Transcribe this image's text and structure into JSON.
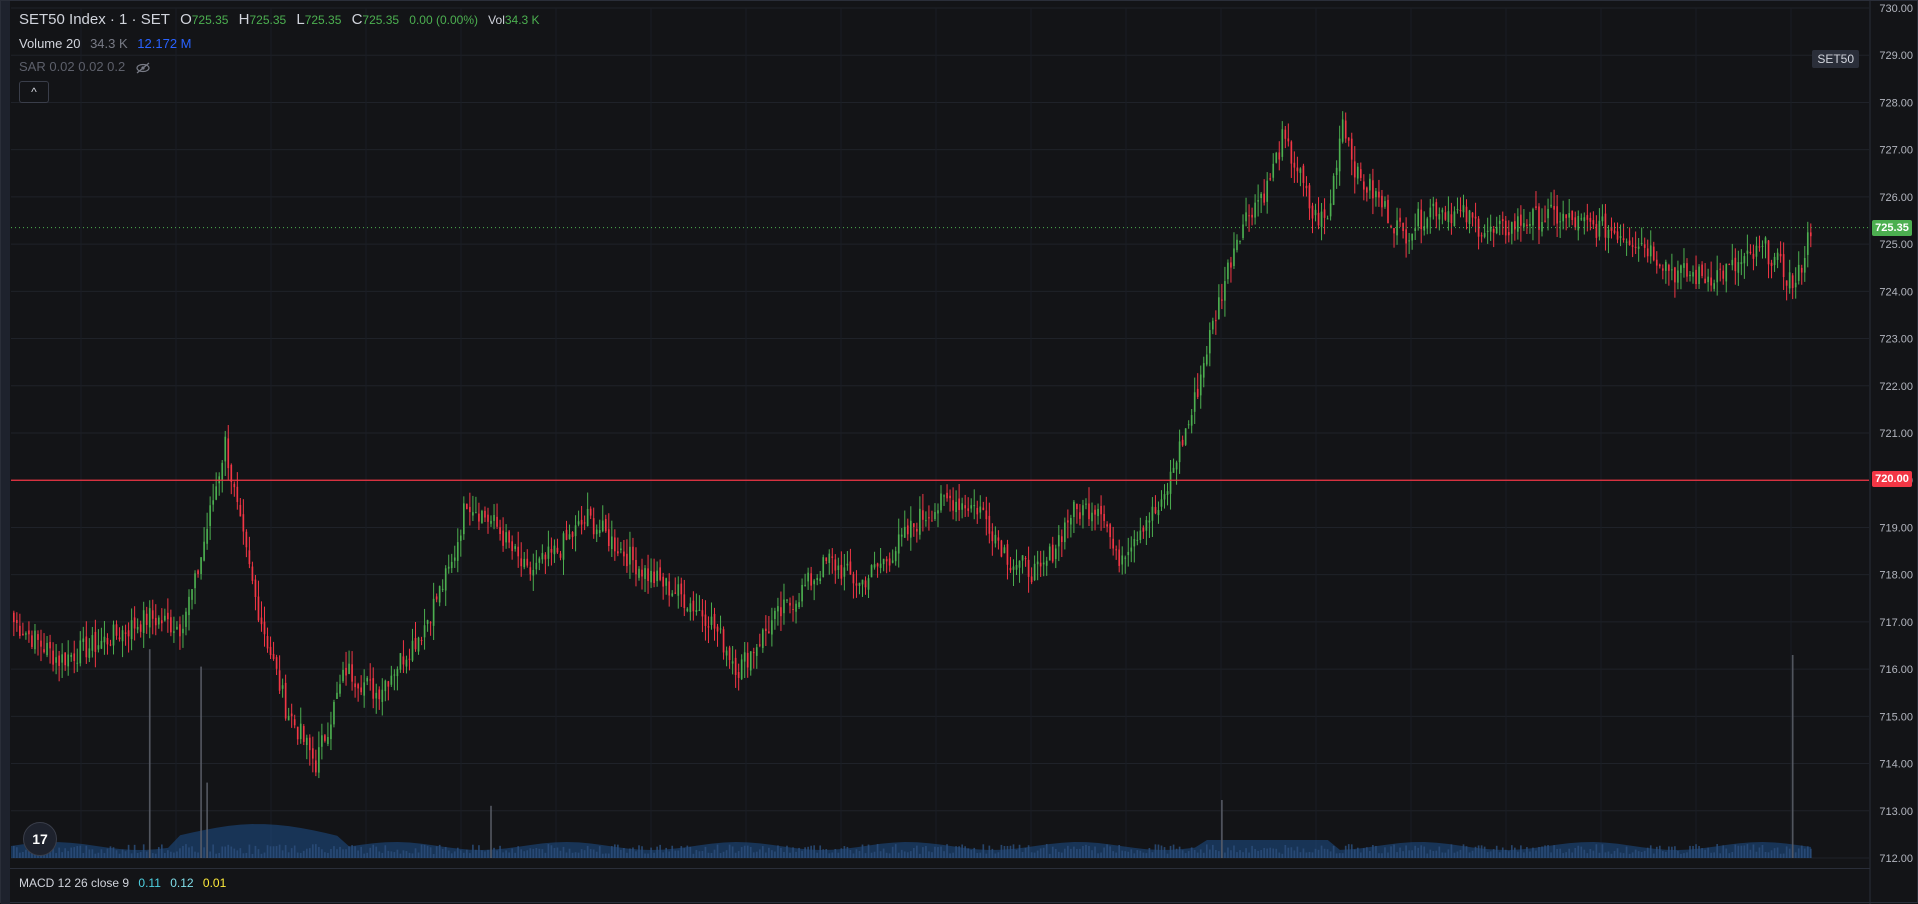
{
  "legend": {
    "symbol": "SET50 Index · 1 · SET",
    "o_label": "O",
    "o_value": "725.35",
    "h_label": "H",
    "h_value": "725.35",
    "l_label": "L",
    "l_value": "725.35",
    "c_label": "C",
    "c_value": "725.35",
    "change": "0.00 (0.00%)",
    "vol_label": "Vol",
    "vol_value": "34.3 K"
  },
  "volume_study": {
    "name": "Volume 20",
    "value": "34.3 K",
    "ma_value": "12.172 M"
  },
  "sar_study": {
    "label": "SAR 0.02 0.02 0.2"
  },
  "collapse_button": "^",
  "symbol_badge": "SET50",
  "macd": {
    "label": "MACD 12 26 close 9",
    "macd_value": "0.11",
    "signal_value": "0.12",
    "hist_value": "0.01"
  },
  "logo_text": "17",
  "colors": {
    "up": "#4caf50",
    "down": "#f23645",
    "volume": "#2962ff",
    "line": "#f23645",
    "bg": "#131417"
  },
  "chart_data": {
    "type": "candlestick",
    "y_ticks": [
      "730.00",
      "729.00",
      "728.00",
      "727.00",
      "726.00",
      "725.00",
      "724.00",
      "723.00",
      "722.00",
      "721.00",
      "720.00",
      "719.00",
      "718.00",
      "717.00",
      "716.00",
      "715.00",
      "714.00",
      "713.00",
      "712.00"
    ],
    "ylim": [
      712,
      730
    ],
    "current_price": "725.35",
    "horizontal_line": {
      "value": "720.00",
      "color": "#f23645"
    },
    "close_path": [
      [
        0,
        717.0
      ],
      [
        15,
        716.2
      ],
      [
        30,
        716.6
      ],
      [
        45,
        717.1
      ],
      [
        55,
        716.9
      ],
      [
        60,
        717.8
      ],
      [
        70,
        720.8
      ],
      [
        75,
        719.0
      ],
      [
        80,
        717.5
      ],
      [
        90,
        715.2
      ],
      [
        100,
        714.0
      ],
      [
        110,
        716.0
      ],
      [
        120,
        715.5
      ],
      [
        135,
        716.8
      ],
      [
        145,
        718.2
      ],
      [
        150,
        719.6
      ],
      [
        160,
        719.0
      ],
      [
        170,
        718.0
      ],
      [
        180,
        718.5
      ],
      [
        190,
        719.2
      ],
      [
        200,
        718.6
      ],
      [
        210,
        718.0
      ],
      [
        220,
        717.6
      ],
      [
        230,
        717.1
      ],
      [
        240,
        716.0
      ],
      [
        250,
        716.9
      ],
      [
        260,
        717.6
      ],
      [
        270,
        718.3
      ],
      [
        280,
        717.8
      ],
      [
        290,
        718.4
      ],
      [
        300,
        719.2
      ],
      [
        310,
        719.6
      ],
      [
        320,
        719.4
      ],
      [
        330,
        718.3
      ],
      [
        340,
        718.0
      ],
      [
        350,
        719.3
      ],
      [
        360,
        719.5
      ],
      [
        365,
        718.3
      ],
      [
        375,
        719.2
      ],
      [
        380,
        719.4
      ],
      [
        385,
        720.5
      ],
      [
        390,
        721.4
      ],
      [
        395,
        722.8
      ],
      [
        400,
        724.0
      ],
      [
        405,
        725.2
      ],
      [
        410,
        725.8
      ],
      [
        415,
        726.2
      ],
      [
        420,
        727.2
      ],
      [
        425,
        726.6
      ],
      [
        430,
        725.6
      ],
      [
        435,
        725.5
      ],
      [
        440,
        727.7
      ],
      [
        445,
        726.4
      ],
      [
        450,
        726.1
      ],
      [
        460,
        725.2
      ],
      [
        470,
        725.8
      ],
      [
        480,
        725.6
      ],
      [
        490,
        725.2
      ],
      [
        500,
        725.5
      ],
      [
        510,
        725.6
      ],
      [
        520,
        725.4
      ],
      [
        530,
        725.3
      ],
      [
        540,
        725.0
      ],
      [
        550,
        724.4
      ],
      [
        560,
        724.3
      ],
      [
        570,
        724.5
      ],
      [
        580,
        724.9
      ],
      [
        590,
        724.1
      ],
      [
        595,
        725.35
      ]
    ],
    "volume_spikes": [
      [
        45,
        3.6
      ],
      [
        62,
        3.3
      ],
      [
        64,
        1.3
      ],
      [
        158,
        0.9
      ],
      [
        400,
        1.0
      ],
      [
        589,
        3.5
      ]
    ]
  }
}
